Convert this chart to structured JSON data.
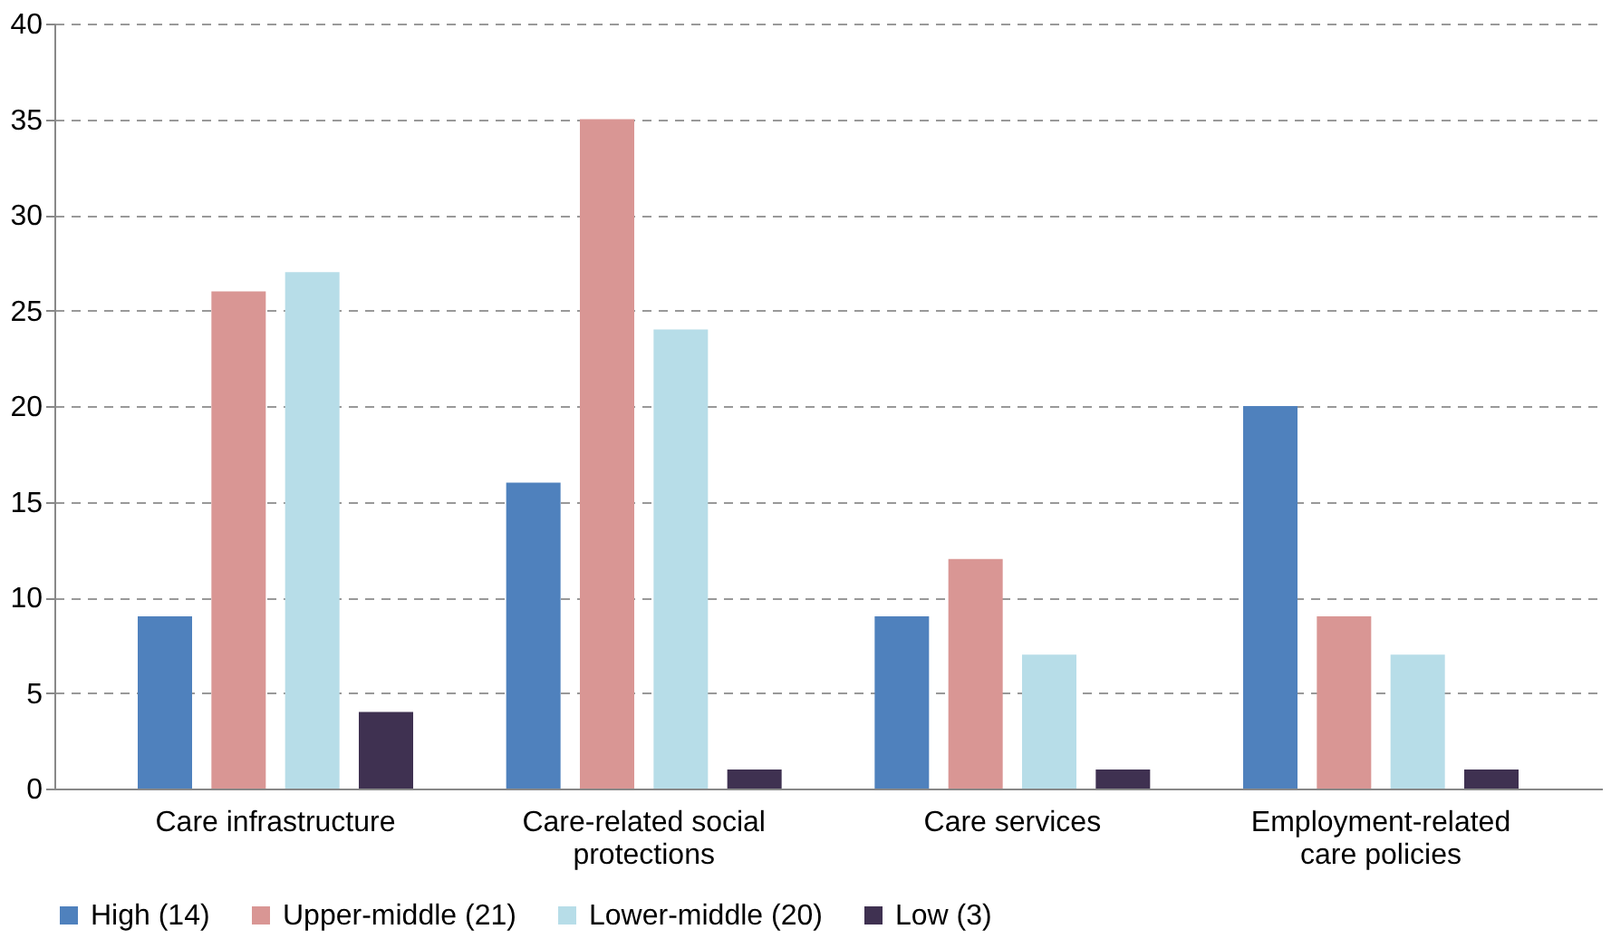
{
  "chart_data": {
    "type": "bar",
    "categories": [
      "Care infrastructure",
      "Care-related social protections",
      "Care services",
      "Employment-related care policies"
    ],
    "series": [
      {
        "name": "High (14)",
        "color": "#4f81bd",
        "values": [
          9,
          16,
          9,
          20
        ]
      },
      {
        "name": "Upper-middle (21)",
        "color": "#d99694",
        "values": [
          26,
          35,
          12,
          9
        ]
      },
      {
        "name": "Lower-middle (20)",
        "color": "#b7dde8",
        "values": [
          27,
          24,
          7,
          7
        ]
      },
      {
        "name": "Low (3)",
        "color": "#3f3151",
        "values": [
          4,
          1,
          1,
          1
        ]
      }
    ],
    "ylim": [
      0,
      40
    ],
    "yticks": [
      0,
      5,
      10,
      15,
      20,
      25,
      30,
      35,
      40
    ],
    "grid": "y",
    "legend": "bottom"
  }
}
